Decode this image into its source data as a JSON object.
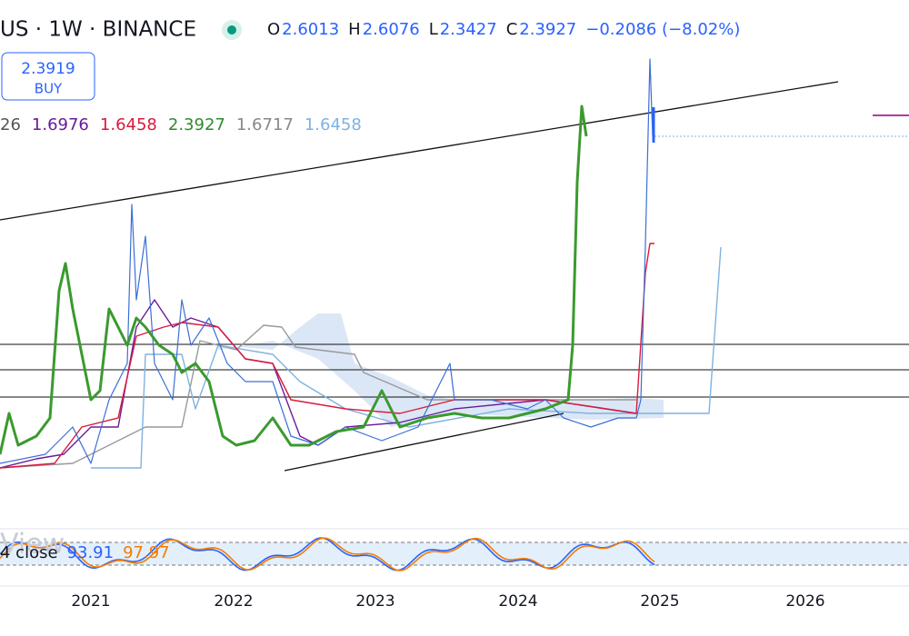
{
  "header": {
    "symbol": "US · 1W · BINANCE",
    "ohlc": [
      {
        "key": "O",
        "value": "2.6013"
      },
      {
        "key": "H",
        "value": "2.6076"
      },
      {
        "key": "L",
        "value": "2.3427"
      },
      {
        "key": "C",
        "value": "2.3927"
      }
    ],
    "change": "−0.2086 (−8.02%)"
  },
  "buy_button": {
    "price": "2.3919",
    "label": "BUY"
  },
  "indicator_values": [
    {
      "text": "26",
      "color": "#555555"
    },
    {
      "text": "1.6976",
      "color": "#6a1b9a"
    },
    {
      "text": "1.6458",
      "color": "#d81b3c"
    },
    {
      "text": "2.3927",
      "color": "#2e8b2e"
    },
    {
      "text": "1.6717",
      "color": "#888888"
    },
    {
      "text": "1.6458",
      "color": "#7fb2e0"
    }
  ],
  "oscillator": {
    "watermark": "View",
    "label": "4 close",
    "values": [
      {
        "text": "93.91",
        "color": "#2962ff"
      },
      {
        "text": "97.97",
        "color": "#f57c00"
      }
    ]
  },
  "x_axis": {
    "labels": [
      "2021",
      "2022",
      "2023",
      "2024",
      "2025",
      "2026"
    ]
  }
}
